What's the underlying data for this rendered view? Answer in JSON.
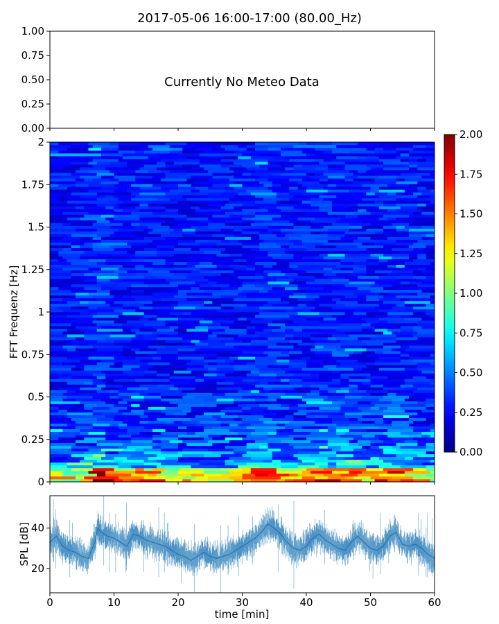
{
  "figure": {
    "title": "2017-05-06 16:00-17:00 (80.00_Hz)"
  },
  "chart_data": [
    {
      "type": "text-panel",
      "message": "Currently No Meteo Data",
      "ylim": [
        0,
        1
      ],
      "yticks": [
        "0.00",
        "0.25",
        "0.50",
        "0.75",
        "1.00"
      ],
      "yticks_values": [
        0,
        0.25,
        0.5,
        0.75,
        1.0
      ]
    },
    {
      "type": "heatmap",
      "ylabel": "FFT Frequenz [Hz]",
      "xlim": [
        0,
        60
      ],
      "ylim": [
        0,
        2
      ],
      "yticks": [
        "0",
        "0.25",
        "0.5",
        "0.75",
        "1",
        "1.25",
        "1.5",
        "1.75",
        "2"
      ],
      "yticks_values": [
        0,
        0.25,
        0.5,
        0.75,
        1,
        1.25,
        1.5,
        1.75,
        2
      ],
      "colormap": "jet",
      "color_range": [
        0,
        2
      ],
      "colorbar_ticks": [
        "0.00",
        "0.25",
        "0.50",
        "0.75",
        "1.00",
        "1.25",
        "1.50",
        "1.75",
        "2.00"
      ],
      "colorbar_values": [
        0,
        0.25,
        0.5,
        0.75,
        1.0,
        1.25,
        1.5,
        1.75,
        2.0
      ]
    },
    {
      "type": "line",
      "xlabel": "time [min]",
      "ylabel": "SPL [dB]",
      "xlim": [
        0,
        60
      ],
      "ylim": [
        8,
        56
      ],
      "xticks": [
        "0",
        "10",
        "20",
        "30",
        "40",
        "50",
        "60"
      ],
      "xticks_values": [
        0,
        10,
        20,
        30,
        40,
        50,
        60
      ],
      "yticks": [
        "20",
        "40"
      ],
      "yticks_values": [
        20,
        40
      ],
      "color": "#1f77b4",
      "series": [
        {
          "x": [
            0,
            1,
            2,
            3,
            4,
            5,
            6,
            7,
            7.5,
            8,
            9,
            10,
            11,
            12,
            13,
            14,
            15,
            16,
            17,
            18,
            19,
            20,
            21,
            22,
            23,
            24,
            25,
            26,
            27,
            28,
            29,
            30,
            31,
            32,
            33,
            34,
            35,
            36,
            37,
            38,
            39,
            40,
            41,
            42,
            43,
            44,
            45,
            46,
            47,
            48,
            49,
            50,
            51,
            52,
            53,
            54,
            55,
            56,
            57,
            58,
            59,
            60
          ],
          "values": [
            33,
            36,
            31,
            29,
            28,
            26,
            25,
            33,
            40,
            38,
            36,
            35,
            33,
            31,
            37,
            36,
            34,
            33,
            32,
            31,
            29,
            27,
            26,
            24,
            26,
            28,
            26,
            25,
            26,
            27,
            29,
            31,
            33,
            35,
            38,
            42,
            40,
            37,
            33,
            30,
            29,
            31,
            35,
            37,
            34,
            32,
            30,
            29,
            33,
            36,
            33,
            30,
            29,
            31,
            36,
            38,
            32,
            31,
            32,
            30,
            27,
            25
          ]
        }
      ]
    }
  ]
}
